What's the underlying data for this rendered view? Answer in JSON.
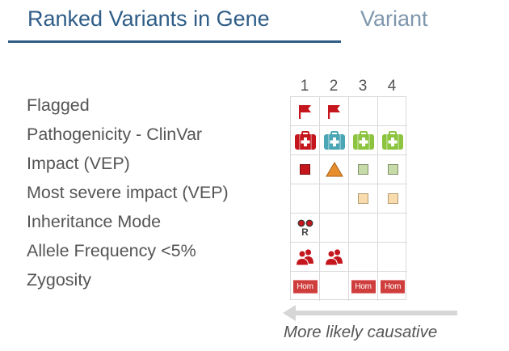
{
  "tabs": [
    {
      "label": "Ranked Variants in Gene",
      "active": true
    },
    {
      "label": "Variant",
      "active": false
    }
  ],
  "columns": [
    "1",
    "2",
    "3",
    "4"
  ],
  "rows": [
    {
      "label": "Flagged",
      "cells": [
        "flag",
        "flag",
        "",
        ""
      ]
    },
    {
      "label": "Pathogenicity - ClinVar",
      "cells": [
        "medkit-red",
        "medkit-teal",
        "medkit-green",
        "medkit-green"
      ]
    },
    {
      "label": "Impact (VEP)",
      "cells": [
        "square-high",
        "triangle-moderate",
        "square-low",
        "square-low"
      ]
    },
    {
      "label": "Most severe impact (VEP)",
      "cells": [
        "",
        "",
        "square-modifier",
        "square-modifier"
      ]
    },
    {
      "label": "Inheritance Mode",
      "cells": [
        "recessive",
        "",
        "",
        ""
      ]
    },
    {
      "label": "Allele Frequency <5%",
      "cells": [
        "people",
        "people",
        "",
        ""
      ]
    },
    {
      "label": "Zygosity",
      "cells": [
        "hom",
        "",
        "hom",
        "hom"
      ]
    }
  ],
  "badges": {
    "hom": "Hom",
    "recessive": "R"
  },
  "caption": "More likely causative",
  "colors": {
    "tab_active": "#2f5d87",
    "tab_inactive": "#7f97ad",
    "flag": "#c4161c",
    "medkit_red": "#c4161c",
    "medkit_teal": "#4aa6b5",
    "medkit_green": "#8cc43f",
    "impact_high": "#c4161c",
    "impact_moderate": "#e88f2d",
    "impact_low": "#c6dba8",
    "impact_modifier": "#f8dcae",
    "hom": "#cf3d3d"
  }
}
